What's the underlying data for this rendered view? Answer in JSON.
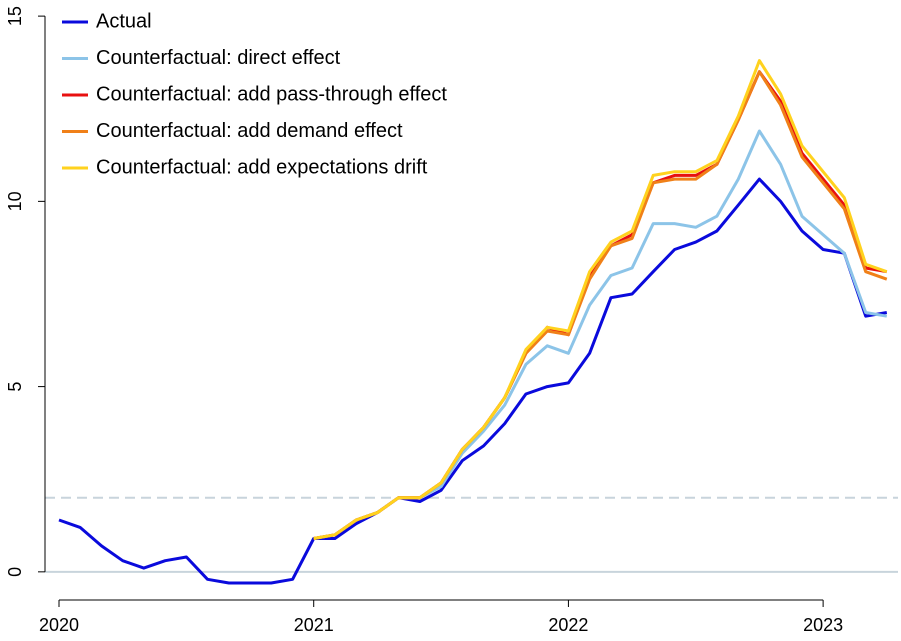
{
  "chart_data": {
    "type": "line",
    "x": [
      2020,
      2020.083,
      2020.167,
      2020.25,
      2020.333,
      2020.417,
      2020.5,
      2020.583,
      2020.667,
      2020.75,
      2020.833,
      2020.917,
      2021,
      2021.083,
      2021.167,
      2021.25,
      2021.333,
      2021.417,
      2021.5,
      2021.583,
      2021.667,
      2021.75,
      2021.833,
      2021.917,
      2022,
      2022.083,
      2022.167,
      2022.25,
      2022.333,
      2022.417,
      2022.5,
      2022.583,
      2022.667,
      2022.75,
      2022.833,
      2022.917,
      2023,
      2023.083,
      2023.167,
      2023.25
    ],
    "series": [
      {
        "name": "Actual",
        "color": "#0a0adc",
        "values": [
          1.4,
          1.2,
          0.7,
          0.3,
          0.1,
          0.3,
          0.4,
          -0.2,
          -0.3,
          -0.3,
          -0.3,
          -0.2,
          0.9,
          0.9,
          1.3,
          1.6,
          2.0,
          1.9,
          2.2,
          3.0,
          3.4,
          4.0,
          4.8,
          5.0,
          5.1,
          5.9,
          7.4,
          7.5,
          8.1,
          8.7,
          8.9,
          9.2,
          9.9,
          10.6,
          10.0,
          9.2,
          8.7,
          8.6,
          6.9,
          7.0
        ]
      },
      {
        "name": "Counterfactual: direct effect",
        "color": "#8cc4e8",
        "values": [
          null,
          null,
          null,
          null,
          null,
          null,
          null,
          null,
          null,
          null,
          null,
          null,
          0.9,
          1.0,
          1.4,
          1.6,
          2.0,
          2.0,
          2.3,
          3.2,
          3.8,
          4.5,
          5.6,
          6.1,
          5.9,
          7.2,
          8.0,
          8.2,
          9.4,
          9.4,
          9.3,
          9.6,
          10.6,
          11.9,
          11.0,
          9.6,
          9.1,
          8.6,
          7.0,
          6.9
        ]
      },
      {
        "name": "Counterfactual: add pass-through effect",
        "color": "#e81010",
        "values": [
          null,
          null,
          null,
          null,
          null,
          null,
          null,
          null,
          null,
          null,
          null,
          null,
          0.9,
          1.0,
          1.4,
          1.6,
          2.0,
          2.0,
          2.4,
          3.3,
          3.9,
          4.7,
          5.9,
          6.6,
          6.4,
          8.0,
          8.8,
          9.1,
          10.5,
          10.7,
          10.7,
          11.0,
          12.2,
          13.5,
          12.7,
          11.3,
          10.6,
          9.9,
          8.2,
          8.1
        ]
      },
      {
        "name": "Counterfactual: add demand effect",
        "color": "#f08018",
        "values": [
          null,
          null,
          null,
          null,
          null,
          null,
          null,
          null,
          null,
          null,
          null,
          null,
          0.9,
          1.0,
          1.4,
          1.6,
          2.0,
          2.0,
          2.4,
          3.3,
          3.9,
          4.7,
          5.9,
          6.5,
          6.4,
          7.9,
          8.8,
          9.0,
          10.5,
          10.6,
          10.6,
          11.0,
          12.2,
          13.5,
          12.6,
          11.2,
          10.5,
          9.8,
          8.1,
          7.9
        ]
      },
      {
        "name": "Counterfactual: add expectations drift",
        "color": "#ffd21e",
        "values": [
          null,
          null,
          null,
          null,
          null,
          null,
          null,
          null,
          null,
          null,
          null,
          null,
          0.9,
          1.0,
          1.4,
          1.6,
          2.0,
          2.0,
          2.4,
          3.3,
          3.9,
          4.7,
          6.0,
          6.6,
          6.5,
          8.1,
          8.9,
          9.2,
          10.7,
          10.8,
          10.8,
          11.1,
          12.3,
          13.8,
          12.9,
          11.5,
          10.8,
          10.1,
          8.3,
          8.1
        ]
      }
    ],
    "xlim": [
      2019.945,
      2023.294
    ],
    "xticks": [
      2020,
      2021,
      2022,
      2023
    ],
    "ylim": [
      -0.76,
      15.3
    ],
    "yticks": [
      0,
      5,
      10,
      15
    ],
    "reference_lines": [
      {
        "value": 0,
        "dashed": false,
        "color": "#c8d4dc"
      },
      {
        "value": 2,
        "dashed": true,
        "color": "#c8d4dc"
      }
    ],
    "legend": "top-left"
  }
}
